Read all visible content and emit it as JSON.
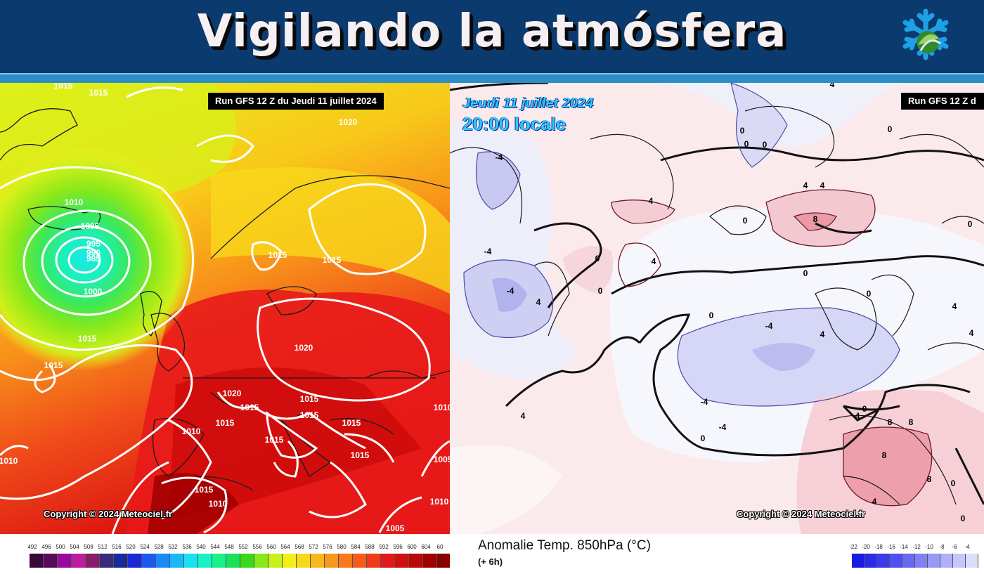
{
  "header": {
    "title": "Vigilando la atmósfera",
    "logo_icon": "snowflake-logo-icon",
    "bg_color": "#0b3a6e",
    "strip_color": "#2c8fc4"
  },
  "left_map": {
    "run_label": "Run GFS 12 Z du Jeudi 11 juillet 2024",
    "copyright": "Copyright © 2024 Meteociel.fr",
    "isobar_labels": [
      "1015",
      "1015",
      "1020",
      "1010",
      "1005",
      "995",
      "990",
      "985",
      "1000",
      "1015",
      "1015",
      "1015",
      "1015",
      "1020",
      "1015",
      "1015",
      "1015",
      "1015",
      "1015",
      "1015",
      "1010",
      "1015",
      "1010",
      "1020",
      "1015",
      "1010",
      "1010",
      "1005",
      "1005",
      "1010"
    ],
    "legend_ticks": [
      "492",
      "496",
      "500",
      "504",
      "508",
      "512",
      "516",
      "520",
      "524",
      "528",
      "532",
      "536",
      "540",
      "544",
      "548",
      "552",
      "556",
      "560",
      "564",
      "568",
      "572",
      "576",
      "580",
      "584",
      "588",
      "592",
      "596",
      "600",
      "604",
      "60"
    ],
    "legend_colors": [
      "#3a0a3a",
      "#5a0a5a",
      "#9a0a9a",
      "#c01aa0",
      "#8a1a6a",
      "#3a2a7a",
      "#1a2a9a",
      "#1a2ad8",
      "#1a5af0",
      "#1a8af8",
      "#1ab8f8",
      "#1ae0f0",
      "#1af0c8",
      "#1af08a",
      "#1ae05a",
      "#3ad81a",
      "#8ae81a",
      "#c8f01a",
      "#f0f01a",
      "#f8d81a",
      "#f8b81a",
      "#f8981a",
      "#f8781a",
      "#f85a1a",
      "#f03a1a",
      "#e01a1a",
      "#d01010",
      "#b80808",
      "#a00000",
      "#880000"
    ]
  },
  "right_map": {
    "run_label": "Run GFS 12 Z d",
    "date_line1": "Jeudi 11 juillet 2024",
    "date_line2": "20:00 locale",
    "copyright": "Copyright © 2024 Meteociel.fr",
    "variable_name": "Anomalie Temp. 850hPa (°C)",
    "step": "(+ 6h)",
    "anomaly_labels": [
      "4",
      "-4",
      "0",
      "0",
      "4",
      "4",
      "8",
      "4",
      "0",
      "4",
      "0",
      "0",
      "-4",
      "-4",
      "4",
      "0",
      "0",
      "0",
      "-4",
      "4",
      "-4",
      "4",
      "-4",
      "0",
      "4",
      "8",
      "8",
      "8",
      "4",
      "8",
      "0",
      "0",
      "0",
      "0",
      "4",
      "4",
      "0",
      "0"
    ],
    "legend_ticks": [
      "-22",
      "-20",
      "-18",
      "-16",
      "-14",
      "-12",
      "-10",
      "-8",
      "-6",
      "-4"
    ],
    "legend_colors": [
      "#1a1ae0",
      "#2a2ae8",
      "#3a3aee",
      "#5050f0",
      "#6868f2",
      "#8080f4",
      "#9898f6",
      "#b0b0f8",
      "#c6c6fa",
      "#dcdcfc"
    ]
  }
}
